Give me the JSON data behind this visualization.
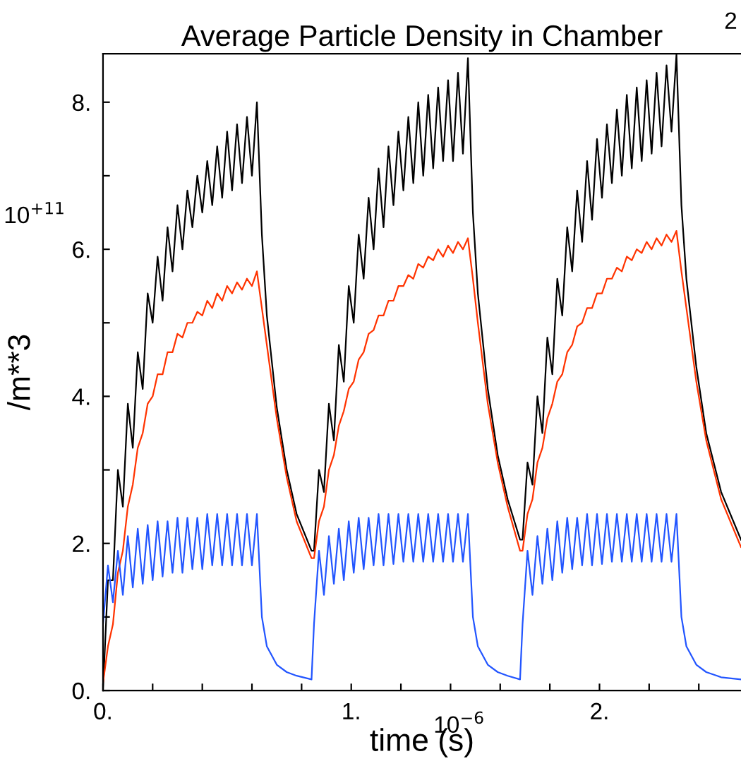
{
  "chart_data": {
    "type": "line",
    "title": "Average Particle Density in Chamber",
    "xlabel": "time (s)",
    "ylabel": "/m**3",
    "annotations": [
      "10$^{+11}$",
      "10$^{−6}$",
      "2"
    ],
    "xlim": [
      0,
      2.57
    ],
    "ylim": [
      0,
      8.66
    ],
    "xticks": [
      {
        "value": 0,
        "label": "0."
      },
      {
        "value": 0.2,
        "label": null
      },
      {
        "value": 0.4,
        "label": null
      },
      {
        "value": 0.6,
        "label": null
      },
      {
        "value": 0.8,
        "label": null
      },
      {
        "value": 1,
        "label": "1."
      },
      {
        "value": 1.2,
        "label": null
      },
      {
        "value": 1.4,
        "label": null
      },
      {
        "value": 1.6,
        "label": null
      },
      {
        "value": 1.8,
        "label": null
      },
      {
        "value": 2,
        "label": "2."
      },
      {
        "value": 2.2,
        "label": null
      },
      {
        "value": 2.4,
        "label": null
      }
    ],
    "yticks": [
      {
        "value": 0,
        "label": "0."
      },
      {
        "value": 1,
        "label": null
      },
      {
        "value": 2,
        "label": "2."
      },
      {
        "value": 3,
        "label": null
      },
      {
        "value": 4,
        "label": "4."
      },
      {
        "value": 5,
        "label": null
      },
      {
        "value": 6,
        "label": "6."
      },
      {
        "value": 7,
        "label": null
      },
      {
        "value": 8,
        "label": "8."
      }
    ],
    "grid": false,
    "legend": false,
    "marker": "none",
    "line_style": "solid",
    "x": [
      0.0,
      0.02,
      0.04,
      0.06,
      0.08,
      0.1,
      0.12,
      0.14,
      0.16,
      0.18,
      0.2,
      0.22,
      0.24,
      0.26,
      0.28,
      0.3,
      0.32,
      0.34,
      0.36,
      0.38,
      0.4,
      0.42,
      0.44,
      0.46,
      0.48,
      0.5,
      0.52,
      0.54,
      0.56,
      0.58,
      0.6,
      0.62,
      0.64,
      0.66,
      0.7,
      0.74,
      0.78,
      0.84,
      0.85,
      0.87,
      0.89,
      0.91,
      0.93,
      0.95,
      0.97,
      0.99,
      1.01,
      1.03,
      1.05,
      1.07,
      1.09,
      1.11,
      1.13,
      1.15,
      1.17,
      1.19,
      1.21,
      1.23,
      1.25,
      1.27,
      1.29,
      1.31,
      1.33,
      1.35,
      1.37,
      1.39,
      1.41,
      1.43,
      1.45,
      1.47,
      1.49,
      1.51,
      1.55,
      1.59,
      1.63,
      1.68,
      1.69,
      1.71,
      1.73,
      1.75,
      1.77,
      1.79,
      1.81,
      1.83,
      1.85,
      1.87,
      1.89,
      1.91,
      1.93,
      1.95,
      1.97,
      1.99,
      2.01,
      2.03,
      2.05,
      2.07,
      2.09,
      2.11,
      2.13,
      2.15,
      2.17,
      2.19,
      2.21,
      2.23,
      2.25,
      2.27,
      2.29,
      2.31,
      2.33,
      2.35,
      2.39,
      2.43,
      2.49,
      2.57
    ],
    "series": [
      {
        "color": "#000000",
        "values": [
          0,
          1.5,
          1.5,
          3.0,
          2.5,
          3.9,
          3.3,
          4.6,
          4.1,
          5.4,
          5.0,
          5.9,
          5.3,
          6.3,
          5.7,
          6.6,
          6.0,
          6.8,
          6.3,
          7.0,
          6.5,
          7.2,
          6.6,
          7.4,
          6.7,
          7.6,
          6.8,
          7.7,
          6.9,
          7.8,
          7.0,
          8.0,
          6.2,
          5.1,
          3.85,
          3.0,
          2.4,
          1.9,
          1.9,
          3.0,
          2.7,
          3.9,
          3.4,
          4.7,
          4.2,
          5.5,
          5.0,
          6.2,
          5.6,
          6.7,
          6.0,
          7.1,
          6.3,
          7.4,
          6.6,
          7.6,
          6.8,
          7.8,
          6.9,
          8.0,
          7.0,
          8.1,
          7.1,
          8.2,
          7.2,
          8.3,
          7.2,
          8.4,
          7.3,
          8.6,
          6.5,
          5.4,
          4.1,
          3.2,
          2.6,
          2.05,
          2.05,
          3.1,
          2.8,
          4.0,
          3.5,
          4.8,
          4.3,
          5.6,
          5.1,
          6.3,
          5.7,
          6.8,
          6.1,
          7.2,
          6.4,
          7.5,
          6.7,
          7.7,
          6.9,
          7.9,
          7.0,
          8.1,
          7.1,
          8.2,
          7.2,
          8.3,
          7.3,
          8.4,
          7.4,
          8.5,
          7.6,
          8.65,
          6.6,
          5.6,
          4.4,
          3.5,
          2.7,
          2.05
        ]
      },
      {
        "color": "#ff3300",
        "values": [
          0.1,
          0.6,
          0.9,
          1.6,
          1.9,
          2.5,
          2.8,
          3.3,
          3.5,
          3.9,
          4.0,
          4.3,
          4.3,
          4.6,
          4.6,
          4.85,
          4.8,
          5.0,
          5.0,
          5.15,
          5.1,
          5.3,
          5.2,
          5.4,
          5.3,
          5.5,
          5.4,
          5.55,
          5.45,
          5.6,
          5.5,
          5.7,
          5.2,
          4.7,
          3.7,
          2.9,
          2.3,
          1.8,
          1.8,
          2.3,
          2.5,
          3.0,
          3.2,
          3.6,
          3.8,
          4.1,
          4.2,
          4.5,
          4.6,
          4.85,
          4.9,
          5.1,
          5.1,
          5.3,
          5.3,
          5.5,
          5.5,
          5.65,
          5.6,
          5.8,
          5.75,
          5.9,
          5.85,
          6.0,
          5.9,
          6.05,
          5.95,
          6.1,
          6.0,
          6.15,
          5.6,
          5.0,
          3.9,
          3.1,
          2.5,
          1.9,
          1.9,
          2.4,
          2.6,
          3.1,
          3.3,
          3.7,
          3.9,
          4.2,
          4.3,
          4.6,
          4.7,
          4.95,
          5.0,
          5.2,
          5.2,
          5.4,
          5.4,
          5.6,
          5.6,
          5.75,
          5.7,
          5.9,
          5.85,
          6.0,
          5.95,
          6.1,
          6.0,
          6.15,
          6.05,
          6.2,
          6.1,
          6.25,
          5.7,
          5.2,
          4.2,
          3.4,
          2.6,
          1.95
        ]
      },
      {
        "color": "#2255ff",
        "values": [
          0.9,
          1.7,
          1.2,
          1.9,
          1.3,
          2.1,
          1.4,
          2.2,
          1.45,
          2.25,
          1.5,
          2.3,
          1.55,
          2.3,
          1.6,
          2.35,
          1.6,
          2.35,
          1.65,
          2.35,
          1.65,
          2.4,
          1.7,
          2.4,
          1.7,
          2.4,
          1.7,
          2.4,
          1.7,
          2.4,
          1.7,
          2.4,
          1.0,
          0.6,
          0.35,
          0.25,
          0.2,
          0.15,
          0.9,
          1.9,
          1.3,
          2.1,
          1.45,
          2.2,
          1.5,
          2.3,
          1.6,
          2.35,
          1.65,
          2.35,
          1.7,
          2.4,
          1.7,
          2.4,
          1.72,
          2.4,
          1.75,
          2.4,
          1.75,
          2.4,
          1.75,
          2.4,
          1.75,
          2.4,
          1.75,
          2.4,
          1.75,
          2.4,
          1.75,
          2.4,
          1.0,
          0.6,
          0.35,
          0.25,
          0.2,
          0.15,
          0.9,
          1.9,
          1.3,
          2.1,
          1.45,
          2.2,
          1.5,
          2.3,
          1.6,
          2.35,
          1.65,
          2.35,
          1.7,
          2.4,
          1.7,
          2.4,
          1.72,
          2.4,
          1.75,
          2.4,
          1.75,
          2.4,
          1.75,
          2.4,
          1.75,
          2.4,
          1.75,
          2.4,
          1.75,
          2.4,
          1.75,
          2.4,
          1.0,
          0.6,
          0.35,
          0.25,
          0.18,
          0.15
        ]
      }
    ]
  }
}
